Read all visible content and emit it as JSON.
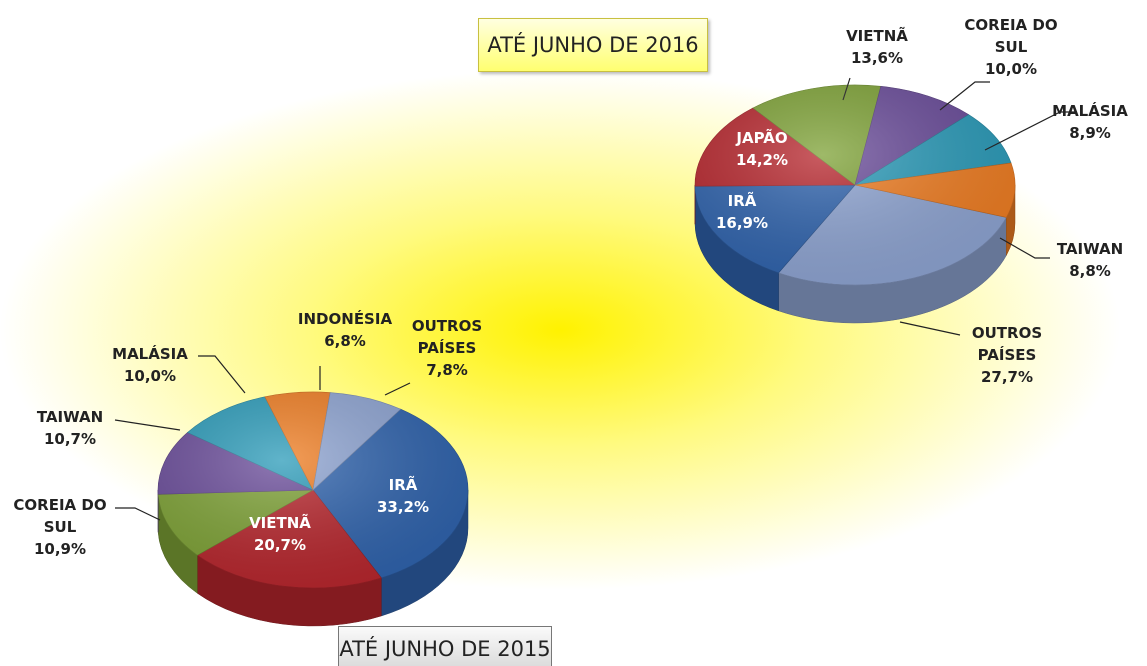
{
  "chart_data": [
    {
      "type": "pie",
      "title": "ATÉ JUNHO DE 2016",
      "categories": [
        "OUTROS PAÍSES",
        "IRÃ",
        "JAPÃO",
        "VIETNÃ",
        "COREIA DO SUL",
        "MALÁSIA",
        "TAIWAN"
      ],
      "values": [
        27.7,
        16.9,
        14.2,
        13.6,
        10.0,
        8.9,
        8.8
      ],
      "value_labels": [
        "27,7%",
        "16,9%",
        "14,2%",
        "13,6%",
        "10,0%",
        "8,9%",
        "8,8%"
      ],
      "colors": [
        "#8ea4d2",
        "#2f63ad",
        "#b7262d",
        "#7ea236",
        "#6a4c9a",
        "#2b9bb9",
        "#ef7d22"
      ]
    },
    {
      "type": "pie",
      "title": "ATÉ JUNHO DE 2015",
      "categories": [
        "IRÃ",
        "VIETNÃ",
        "COREIA DO SUL",
        "TAIWAN",
        "MALÁSIA",
        "INDONÉSIA",
        "OUTROS PAÍSES"
      ],
      "values": [
        33.2,
        20.7,
        10.9,
        10.7,
        10.0,
        6.8,
        7.8
      ],
      "value_labels": [
        "33,2%",
        "20,7%",
        "10,9%",
        "10,7%",
        "10,0%",
        "6,8%",
        "7,8%"
      ],
      "colors": [
        "#2f63ad",
        "#b7262d",
        "#7ea236",
        "#6a4c9a",
        "#2b9bb9",
        "#ef7d22",
        "#8ea4d2"
      ]
    }
  ]
}
